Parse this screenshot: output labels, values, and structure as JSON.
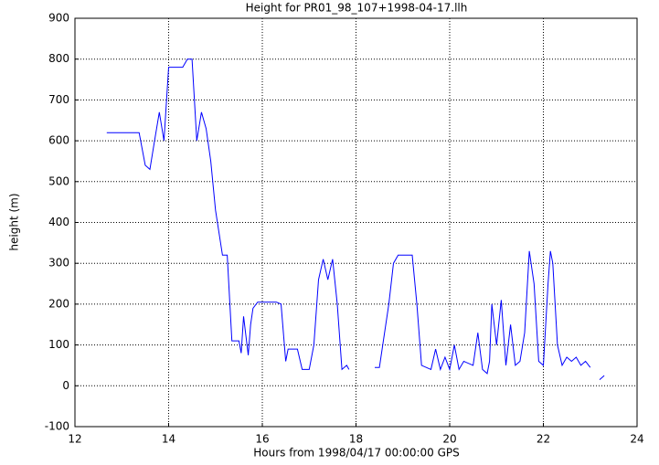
{
  "chart_data": {
    "type": "line",
    "title": "Height for PR01_98_107+1998-04-17.llh",
    "x_label": "Hours from 1998/04/17 00:00:00 GPS",
    "y_label": "height (m)",
    "xlim": [
      12,
      24
    ],
    "xticks": [
      12,
      14,
      16,
      18,
      20,
      22,
      24
    ],
    "ylim": [
      -100,
      900
    ],
    "yticks": [
      -100,
      0,
      100,
      200,
      300,
      400,
      500,
      600,
      700,
      800,
      900
    ],
    "grid": true,
    "x": [
      12.68,
      13.37,
      13.5,
      13.6,
      13.7,
      13.8,
      13.9,
      14.0,
      14.3,
      14.4,
      14.5,
      14.6,
      14.7,
      14.8,
      14.9,
      15.0,
      15.15,
      15.25,
      15.35,
      15.5,
      15.55,
      15.6,
      15.7,
      15.75,
      15.8,
      15.9,
      16.3,
      16.4,
      16.5,
      16.55,
      16.75,
      16.85,
      17.0,
      17.1,
      17.2,
      17.3,
      17.4,
      17.5,
      17.6,
      17.7,
      17.8,
      17.85,
      18.1,
      18.4,
      18.5,
      18.7,
      18.8,
      18.9,
      19.0,
      19.2,
      19.3,
      19.4,
      19.6,
      19.7,
      19.8,
      19.9,
      20.0,
      20.1,
      20.2,
      20.3,
      20.5,
      20.6,
      20.7,
      20.8,
      20.85,
      20.9,
      21.0,
      21.1,
      21.2,
      21.3,
      21.4,
      21.5,
      21.6,
      21.7,
      21.8,
      21.9,
      22.0,
      22.1,
      22.15,
      22.2,
      22.3,
      22.4,
      22.5,
      22.6,
      22.7,
      22.8,
      22.9,
      23.0,
      23.1,
      23.2,
      23.3
    ],
    "series": [
      {
        "name": "height",
        "color": "#0000ff",
        "values": [
          620,
          620,
          540,
          530,
          600,
          670,
          600,
          780,
          780,
          800,
          800,
          600,
          670,
          630,
          550,
          430,
          320,
          320,
          110,
          110,
          80,
          170,
          75,
          150,
          190,
          205,
          205,
          200,
          60,
          90,
          90,
          40,
          40,
          100,
          260,
          310,
          260,
          310,
          200,
          40,
          50,
          40,
          null,
          45,
          45,
          200,
          300,
          320,
          320,
          320,
          200,
          50,
          40,
          90,
          40,
          70,
          40,
          100,
          40,
          60,
          50,
          130,
          40,
          30,
          60,
          200,
          100,
          210,
          50,
          150,
          50,
          60,
          130,
          330,
          250,
          60,
          50,
          250,
          330,
          300,
          100,
          50,
          70,
          60,
          70,
          50,
          60,
          45,
          null,
          15,
          25
        ]
      }
    ]
  }
}
